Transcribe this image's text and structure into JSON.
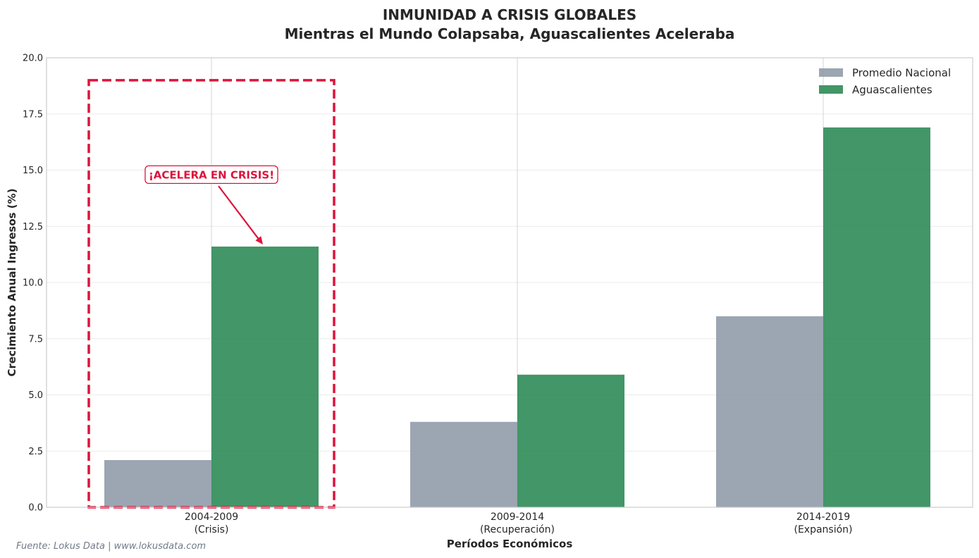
{
  "chart_data": {
    "type": "bar",
    "title": "INMUNIDAD A CRISIS GLOBALES",
    "subtitle": "Mientras el Mundo Colapsaba, Aguascalientes Aceleraba",
    "xlabel": "Períodos Económicos",
    "ylabel": "Crecimiento Anual Ingresos (%)",
    "ylim": [
      0,
      20
    ],
    "yticks": [
      0,
      2.5,
      5,
      7.5,
      10,
      12.5,
      15,
      17.5,
      20
    ],
    "ytick_labels": [
      "0.0",
      "2.5",
      "5.0",
      "7.5",
      "10.0",
      "12.5",
      "15.0",
      "17.5",
      "20.0"
    ],
    "categories": [
      {
        "line1": "2004-2009",
        "line2": "(Crisis)"
      },
      {
        "line1": "2009-2014",
        "line2": "(Recuperación)"
      },
      {
        "line1": "2014-2019",
        "line2": "(Expansión)"
      }
    ],
    "series": [
      {
        "name": "Promedio Nacional",
        "color": "#8d9aa7",
        "values": [
          2.1,
          3.8,
          8.5
        ]
      },
      {
        "name": "Aguascalientes",
        "color": "#2e8b57",
        "values": [
          11.6,
          5.9,
          16.9
        ]
      }
    ],
    "grid": true,
    "legend_position": "top-right",
    "annotation": {
      "text": "¡ACELERA EN CRISIS!",
      "color": "#dc143c",
      "category_index": 0,
      "series_index": 1,
      "y_value": 14.8,
      "highlight_box": {
        "y_top": 19.0,
        "y_bottom": 0
      }
    },
    "source": "Fuente: Lokus Data | www.lokusdata.com"
  }
}
